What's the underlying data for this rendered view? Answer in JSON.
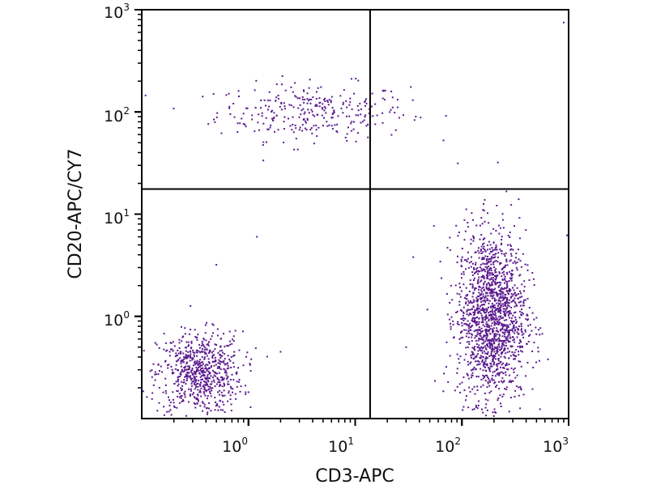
{
  "chart_data": {
    "type": "scatter",
    "title": "",
    "xlabel": "CD3-APC",
    "ylabel": "CD20-APC/CY7",
    "xscale": "log",
    "yscale": "log",
    "xlim": [
      0.1,
      1000
    ],
    "ylim": [
      0.1,
      1000
    ],
    "x_ticks": [
      {
        "base": "10",
        "exp": "0"
      },
      {
        "base": "10",
        "exp": "1"
      },
      {
        "base": "10",
        "exp": "2"
      },
      {
        "base": "10",
        "exp": "3"
      }
    ],
    "y_ticks": [
      {
        "base": "10",
        "exp": "0"
      },
      {
        "base": "10",
        "exp": "1"
      },
      {
        "base": "10",
        "exp": "2"
      },
      {
        "base": "10",
        "exp": "3"
      }
    ],
    "x_tick_values": [
      1,
      10,
      100,
      1000
    ],
    "y_tick_values": [
      1,
      10,
      100,
      1000
    ],
    "quadrant_gate": {
      "x": 13.8,
      "y": 17.6
    },
    "point_color": "#5b1a8e",
    "populations": [
      {
        "name": "CD3-CD20+ (upper-left)",
        "center": [
          4,
          100
        ],
        "log_sd": [
          0.45,
          0.14
        ],
        "count": 300
      },
      {
        "name": "CD3-CD20- (lower-left)",
        "center": [
          0.35,
          0.28
        ],
        "log_sd": [
          0.2,
          0.2
        ],
        "count": 700
      },
      {
        "name": "CD3+CD20- (lower-right)",
        "center": [
          190,
          1.0
        ],
        "log_sd": [
          0.16,
          0.42
        ],
        "count": 1600
      }
    ],
    "outliers": [
      [
        900,
        750
      ],
      [
        37,
        90
      ],
      [
        1000,
        6.2
      ],
      [
        1.2,
        6
      ],
      [
        0.5,
        3.2
      ],
      [
        35,
        3.8
      ],
      [
        30,
        0.5
      ],
      [
        2,
        0.45
      ]
    ]
  }
}
